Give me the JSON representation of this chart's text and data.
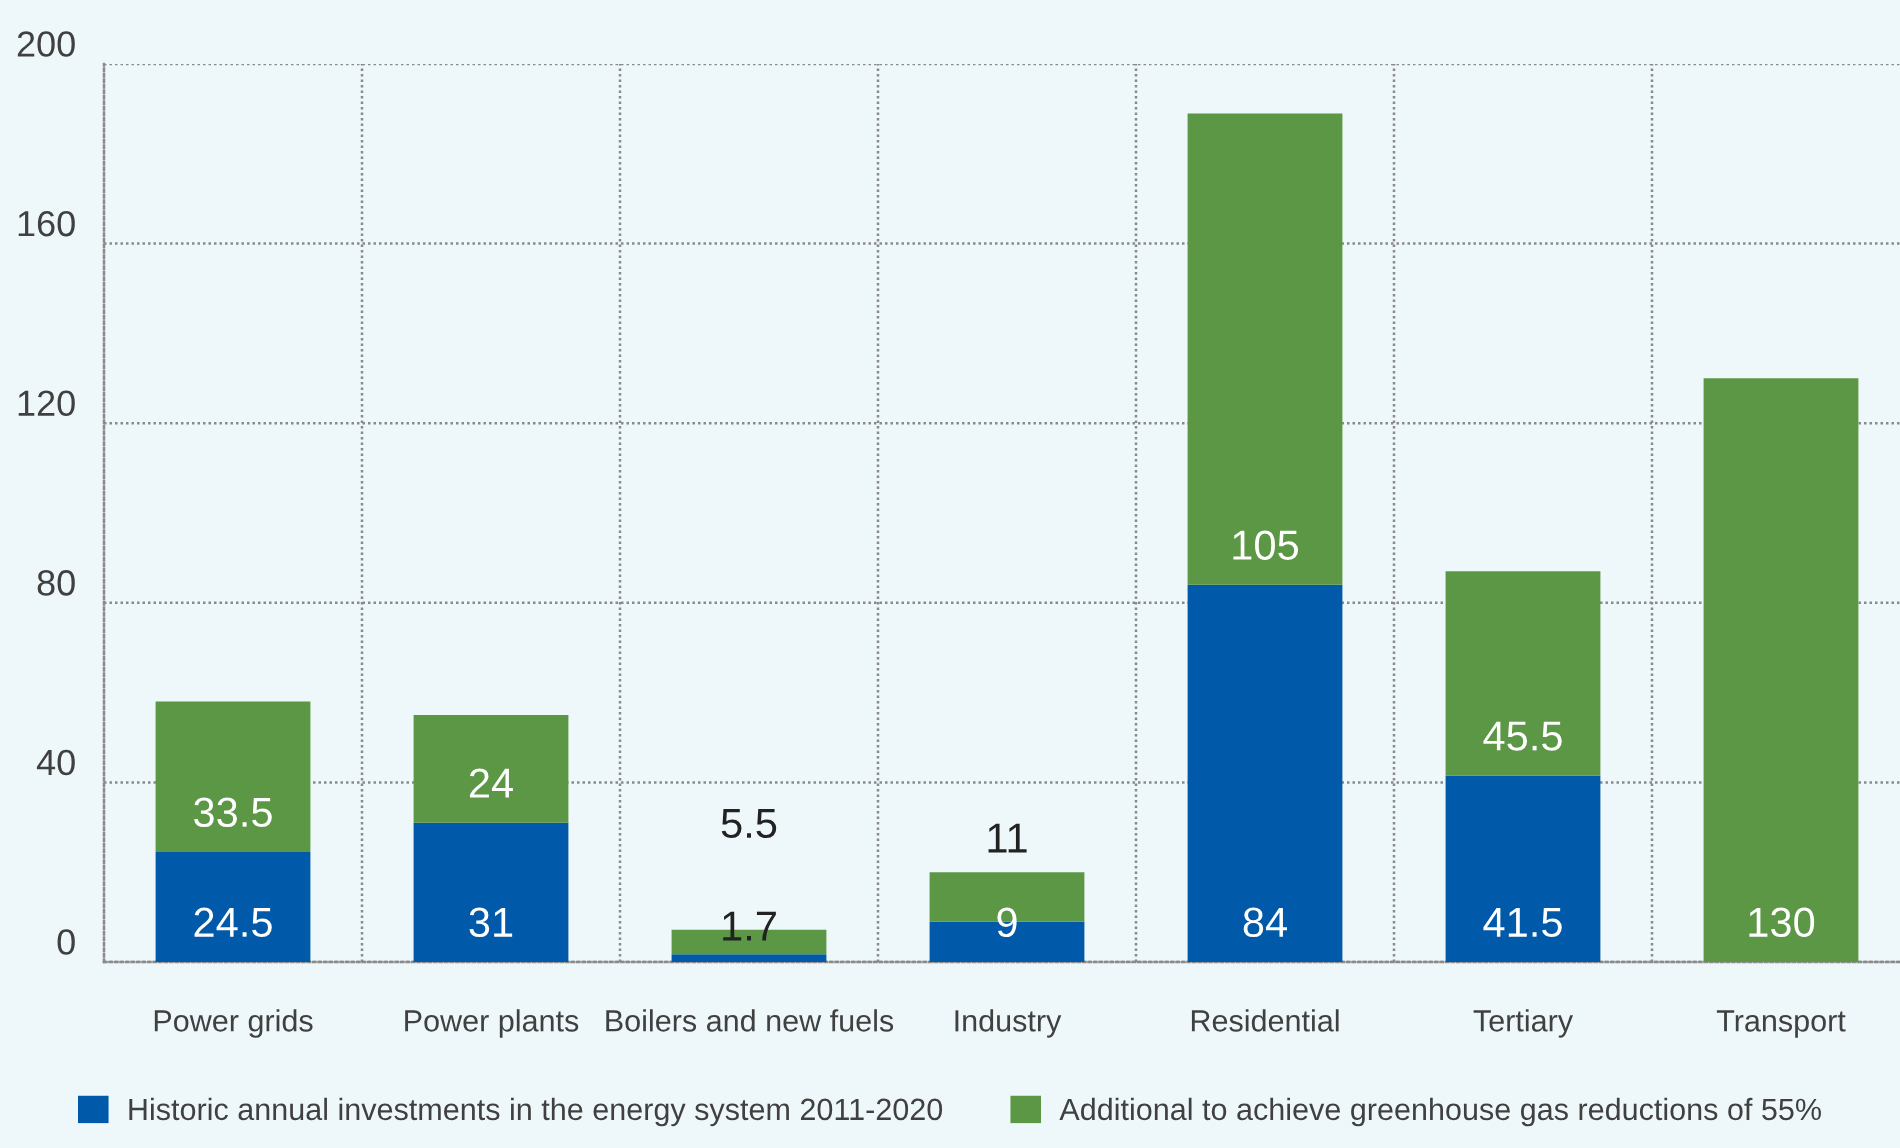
{
  "chart_data": {
    "type": "bar",
    "stacked": true,
    "categories": [
      "Power grids",
      "Power plants",
      "Boilers and new fuels",
      "Industry",
      "Residential",
      "Tertiary",
      "Transport"
    ],
    "series": [
      {
        "name": "Historic annual investments in the energy system 2011-2020",
        "color": "#005aa9",
        "values": [
          24.5,
          31,
          1.7,
          9,
          84,
          41.5,
          null
        ]
      },
      {
        "name": "Additional to achieve greenhouse gas reductions of 55%",
        "color": "#5b9744",
        "values": [
          33.5,
          24,
          5.5,
          11,
          105,
          45.5,
          130
        ]
      }
    ],
    "ylim": [
      0,
      200
    ],
    "yticks": [
      0,
      40,
      80,
      120,
      160,
      200
    ],
    "grid": true,
    "legend": "bottom",
    "data_labels": true
  }
}
